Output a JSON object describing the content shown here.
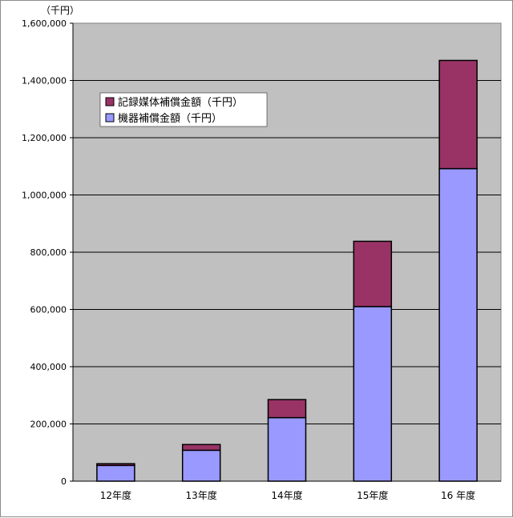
{
  "chart_data": {
    "type": "bar",
    "stacked": true,
    "unit_label": "（千円）",
    "categories": [
      "12年度",
      "13年度",
      "14年度",
      "15年度",
      "16 年度"
    ],
    "series": [
      {
        "name": "機器補償金額（千円）",
        "color": "#9999ff",
        "values": [
          55000,
          108000,
          222000,
          610000,
          1092000
        ]
      },
      {
        "name": "記録媒体補償金額（千円）",
        "color": "#993366",
        "values": [
          6000,
          20000,
          63000,
          228000,
          378000
        ]
      }
    ],
    "ylim": [
      0,
      1600000
    ],
    "yticks": [
      0,
      200000,
      400000,
      600000,
      800000,
      1000000,
      1200000,
      1400000,
      1600000
    ],
    "ytick_labels": [
      "0",
      "200,000",
      "400,000",
      "600,000",
      "800,000",
      "1,000,000",
      "1,200,000",
      "1,400,000",
      "1,600,000"
    ],
    "grid": true,
    "plot_background": "#c0c0c0",
    "legend_position": "upper-left"
  }
}
